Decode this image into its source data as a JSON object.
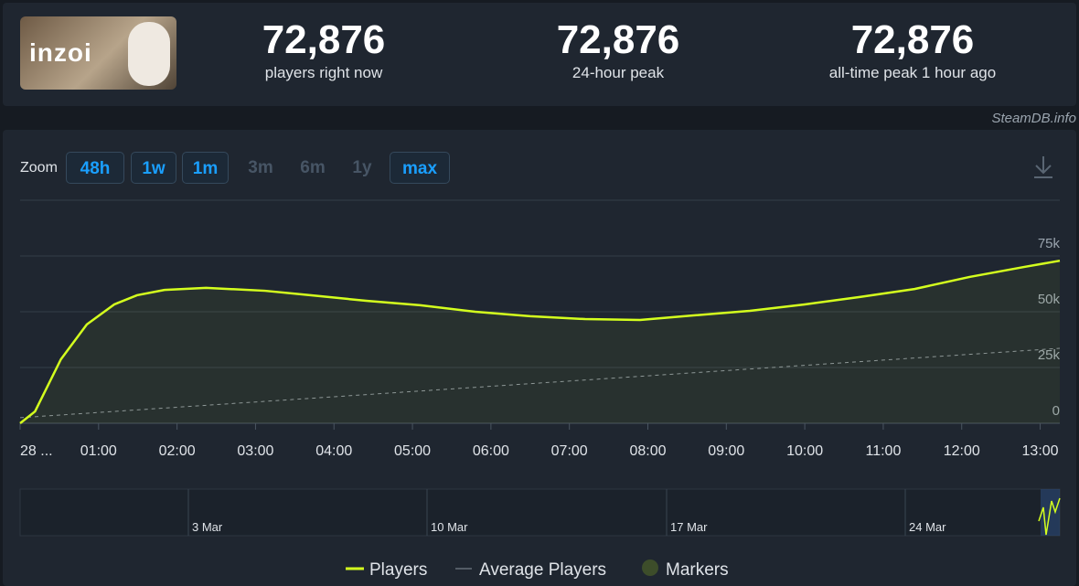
{
  "header": {
    "logo_text": "inzoi",
    "stats": [
      {
        "value": "72,876",
        "label": "players right now"
      },
      {
        "value": "72,876",
        "label": "24-hour peak"
      },
      {
        "value": "72,876",
        "label": "all-time peak 1 hour ago"
      }
    ],
    "credit": "SteamDB.info"
  },
  "zoom": {
    "label": "Zoom",
    "buttons": [
      {
        "label": "48h",
        "enabled": true
      },
      {
        "label": "1w",
        "enabled": true
      },
      {
        "label": "1m",
        "enabled": true
      },
      {
        "label": "3m",
        "enabled": false
      },
      {
        "label": "6m",
        "enabled": false
      },
      {
        "label": "1y",
        "enabled": false
      },
      {
        "label": "max",
        "enabled": true
      }
    ]
  },
  "chart_data": {
    "type": "line",
    "xlim": [
      0,
      13.25
    ],
    "xticks": [
      {
        "value": 0,
        "label": "28 ..."
      },
      {
        "value": 1,
        "label": "01:00"
      },
      {
        "value": 2,
        "label": "02:00"
      },
      {
        "value": 3,
        "label": "03:00"
      },
      {
        "value": 4,
        "label": "04:00"
      },
      {
        "value": 5,
        "label": "05:00"
      },
      {
        "value": 6,
        "label": "06:00"
      },
      {
        "value": 7,
        "label": "07:00"
      },
      {
        "value": 8,
        "label": "08:00"
      },
      {
        "value": 9,
        "label": "09:00"
      },
      {
        "value": 10,
        "label": "10:00"
      },
      {
        "value": 11,
        "label": "11:00"
      },
      {
        "value": 12,
        "label": "12:00"
      },
      {
        "value": 13,
        "label": "13:00"
      }
    ],
    "ylim": [
      0,
      100000
    ],
    "yticks": [
      0,
      {
        "value": 25000,
        "label": "25k"
      },
      {
        "value": 50000,
        "label": "50k"
      },
      {
        "value": 75000,
        "label": "75k"
      }
    ],
    "grid": true,
    "series": [
      {
        "name": "Players",
        "color": "#d4ff1e",
        "x": [
          0,
          0.19,
          0.52,
          0.85,
          1.2,
          1.49,
          1.84,
          2.37,
          3.12,
          3.71,
          4.41,
          5.1,
          5.8,
          6.5,
          7.2,
          7.9,
          8.6,
          9.3,
          10.0,
          10.7,
          11.4,
          12.1,
          12.8,
          13.25
        ],
        "values": [
          0,
          5300,
          28700,
          44300,
          53300,
          57400,
          59800,
          60700,
          59400,
          57400,
          54900,
          52900,
          50000,
          48000,
          46700,
          46300,
          48400,
          50400,
          53300,
          56600,
          60200,
          65600,
          70100,
          72876
        ]
      },
      {
        "name": "Average Players",
        "color": "#8a929c",
        "dashed": true,
        "x": [
          0,
          13.25
        ],
        "values": [
          2500,
          33600
        ]
      }
    ],
    "markers": {
      "name": "Markers",
      "color": "#3d4d2a"
    },
    "navigator": {
      "labels": [
        "3 Mar",
        "10 Mar",
        "17 Mar",
        "24 Mar"
      ]
    }
  }
}
